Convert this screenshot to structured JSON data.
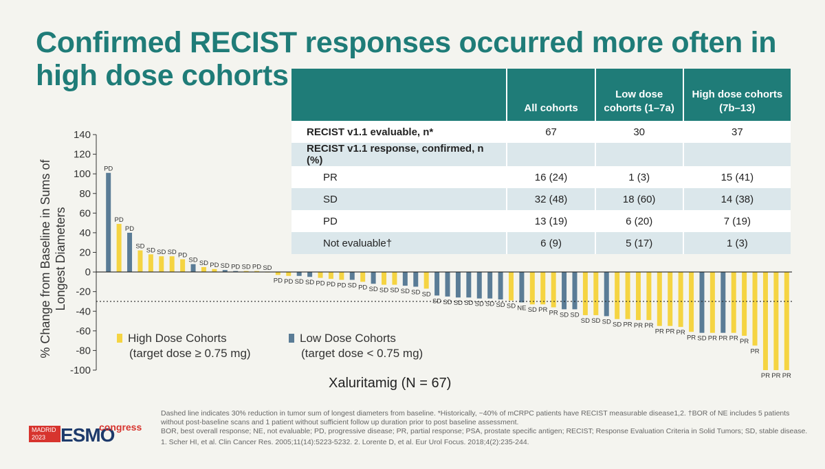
{
  "title": "Confirmed RECIST responses occurred more often in high dose cohorts",
  "colors": {
    "high": "#f5d442",
    "low": "#5a7c96",
    "accent": "#1f7c78"
  },
  "table": {
    "headers": [
      "",
      "All cohorts",
      "Low dose cohorts (1–7a)",
      "High dose cohorts (7b–13)"
    ],
    "rows": [
      {
        "label": "RECIST v1.1 evaluable, n*",
        "all": "67",
        "low": "30",
        "high": "37"
      },
      {
        "label": "RECIST v1.1 response, confirmed, n (%)",
        "all": "",
        "low": "",
        "high": ""
      },
      {
        "label": "PR",
        "all": "16 (24)",
        "low": "1 (3)",
        "high": "15 (41)"
      },
      {
        "label": "SD",
        "all": "32 (48)",
        "low": "18 (60)",
        "high": "14 (38)"
      },
      {
        "label": "PD",
        "all": "13 (19)",
        "low": "6 (20)",
        "high": "7 (19)"
      },
      {
        "label": "Not evaluable†",
        "all": "6 (9)",
        "low": "5 (17)",
        "high": "1 (3)"
      }
    ]
  },
  "legend": {
    "high_label": "High Dose Cohorts",
    "high_sub": "(target dose ≥ 0.75 mg)",
    "low_label": "Low Dose Cohorts",
    "low_sub": "(target dose < 0.75 mg)"
  },
  "chart_data": {
    "type": "bar",
    "xlabel": "Xaluritamig (N = 67)",
    "ylabel": "% Change from Baseline in Sums of Longest Diameters",
    "ylim": [
      -100,
      140
    ],
    "yticks": [
      140,
      120,
      100,
      80,
      60,
      40,
      20,
      0,
      -20,
      -40,
      -60,
      -80,
      -100
    ],
    "reference_line": -30,
    "bars": [
      {
        "value": 101,
        "label": "PD",
        "cohort": "low"
      },
      {
        "value": 49,
        "label": "PD",
        "cohort": "high"
      },
      {
        "value": 40,
        "label": "PD",
        "cohort": "low"
      },
      {
        "value": 22,
        "label": "SD",
        "cohort": "high"
      },
      {
        "value": 18,
        "label": "SD",
        "cohort": "high"
      },
      {
        "value": 16,
        "label": "SD",
        "cohort": "high"
      },
      {
        "value": 16,
        "label": "SD",
        "cohort": "high"
      },
      {
        "value": 13,
        "label": "PD",
        "cohort": "high"
      },
      {
        "value": 8,
        "label": "SD",
        "cohort": "low"
      },
      {
        "value": 5,
        "label": "SD",
        "cohort": "high"
      },
      {
        "value": 3,
        "label": "PD",
        "cohort": "high"
      },
      {
        "value": 2,
        "label": "SD",
        "cohort": "low"
      },
      {
        "value": 1,
        "label": "PD",
        "cohort": "low"
      },
      {
        "value": 1,
        "label": "SD",
        "cohort": "high"
      },
      {
        "value": 1,
        "label": "PD",
        "cohort": "high"
      },
      {
        "value": 0,
        "label": "SD",
        "cohort": "high"
      },
      {
        "value": -3,
        "label": "PD",
        "cohort": "high"
      },
      {
        "value": -4,
        "label": "PD",
        "cohort": "high"
      },
      {
        "value": -4,
        "label": "SD",
        "cohort": "low"
      },
      {
        "value": -5,
        "label": "SD",
        "cohort": "low"
      },
      {
        "value": -6,
        "label": "PD",
        "cohort": "high"
      },
      {
        "value": -7,
        "label": "PD",
        "cohort": "high"
      },
      {
        "value": -8,
        "label": "PD",
        "cohort": "high"
      },
      {
        "value": -8,
        "label": "SD",
        "cohort": "low"
      },
      {
        "value": -10,
        "label": "PD",
        "cohort": "high"
      },
      {
        "value": -12,
        "label": "SD",
        "cohort": "low"
      },
      {
        "value": -13,
        "label": "SD",
        "cohort": "high"
      },
      {
        "value": -13,
        "label": "SD",
        "cohort": "high"
      },
      {
        "value": -14,
        "label": "SD",
        "cohort": "low"
      },
      {
        "value": -15,
        "label": "SD",
        "cohort": "low"
      },
      {
        "value": -17,
        "label": "SD",
        "cohort": "high"
      },
      {
        "value": -24,
        "label": "SD",
        "cohort": "low"
      },
      {
        "value": -25,
        "label": "SD",
        "cohort": "low"
      },
      {
        "value": -26,
        "label": "SD",
        "cohort": "low"
      },
      {
        "value": -26,
        "label": "SD",
        "cohort": "low"
      },
      {
        "value": -27,
        "label": "SD",
        "cohort": "low"
      },
      {
        "value": -27,
        "label": "SD",
        "cohort": "low"
      },
      {
        "value": -28,
        "label": "SD",
        "cohort": "low"
      },
      {
        "value": -29,
        "label": "SD",
        "cohort": "high"
      },
      {
        "value": -31,
        "label": "NE",
        "cohort": "low"
      },
      {
        "value": -33,
        "label": "SD",
        "cohort": "high"
      },
      {
        "value": -33,
        "label": "PR",
        "cohort": "high"
      },
      {
        "value": -36,
        "label": "PR",
        "cohort": "high"
      },
      {
        "value": -38,
        "label": "SD",
        "cohort": "low"
      },
      {
        "value": -38,
        "label": "SD",
        "cohort": "low"
      },
      {
        "value": -44,
        "label": "SD",
        "cohort": "high"
      },
      {
        "value": -44,
        "label": "SD",
        "cohort": "high"
      },
      {
        "value": -45,
        "label": "SD",
        "cohort": "low"
      },
      {
        "value": -48,
        "label": "SD",
        "cohort": "high"
      },
      {
        "value": -48,
        "label": "PR",
        "cohort": "high"
      },
      {
        "value": -49,
        "label": "PR",
        "cohort": "high"
      },
      {
        "value": -49,
        "label": "PR",
        "cohort": "high"
      },
      {
        "value": -55,
        "label": "PR",
        "cohort": "high"
      },
      {
        "value": -55,
        "label": "PR",
        "cohort": "high"
      },
      {
        "value": -56,
        "label": "PR",
        "cohort": "high"
      },
      {
        "value": -61,
        "label": "PR",
        "cohort": "high"
      },
      {
        "value": -62,
        "label": "SD",
        "cohort": "low"
      },
      {
        "value": -62,
        "label": "PR",
        "cohort": "high"
      },
      {
        "value": -62,
        "label": "PR",
        "cohort": "low"
      },
      {
        "value": -62,
        "label": "PR",
        "cohort": "high"
      },
      {
        "value": -65,
        "label": "PR",
        "cohort": "high"
      },
      {
        "value": -75,
        "label": "PR",
        "cohort": "high"
      },
      {
        "value": -100,
        "label": "PR",
        "cohort": "high"
      },
      {
        "value": -100,
        "label": "PR",
        "cohort": "high"
      },
      {
        "value": -100,
        "label": "PR",
        "cohort": "high"
      }
    ]
  },
  "footer": {
    "line1": "Dashed line indicates 30% reduction in tumor sum of longest diameters from baseline. *Historically, ~40% of mCRPC patients have RECIST measurable disease1,2. †BOR of NE includes 5 patients without post-baseline scans and 1 patient without sufficient follow up duration prior to post baseline assessment.",
    "line2": "BOR, best overall response; NE, not evaluable; PD, progressive disease; PR, partial response; PSA, prostate specific antigen; RECIST; Response Evaluation Criteria in Solid Tumors; SD, stable disease.",
    "line3": "1. Scher HI, et al. Clin Cancer Res. 2005;11(14):5223-5232. 2. Lorente D, et al. Eur Urol Focus. 2018;4(2):235-244."
  },
  "logo": {
    "city": "MADRID 2023",
    "brand": "ESMO",
    "suffix": "congress"
  }
}
